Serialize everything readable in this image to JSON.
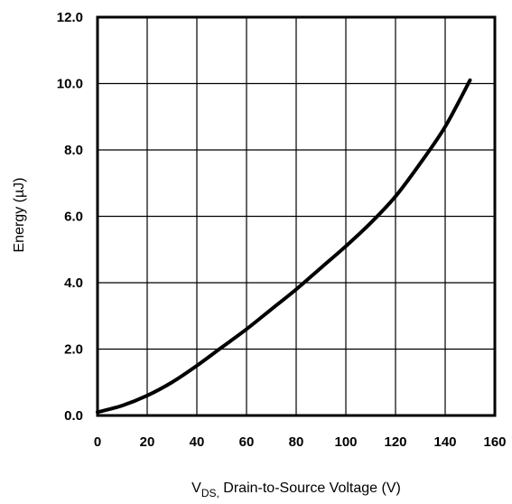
{
  "chart_data": {
    "type": "line",
    "title": "",
    "xlabel": {
      "main": "V",
      "subscript": "DS,",
      "rest": " Drain-to-Source Voltage (V)"
    },
    "ylabel": "Energy (µJ)",
    "xlim": [
      0,
      160
    ],
    "ylim": [
      0,
      12
    ],
    "x_ticks": [
      "0",
      "20",
      "40",
      "60",
      "80",
      "100",
      "120",
      "140",
      "160"
    ],
    "y_ticks": [
      "0.0",
      "2.0",
      "4.0",
      "6.0",
      "8.0",
      "10.0",
      "12.0"
    ],
    "grid": true,
    "legend": "none",
    "series": [
      {
        "x": [
          0,
          10,
          20,
          30,
          40,
          50,
          60,
          70,
          80,
          90,
          100,
          110,
          120,
          130,
          140,
          150
        ],
        "y": [
          0.1,
          0.3,
          0.6,
          1.0,
          1.5,
          2.05,
          2.6,
          3.2,
          3.8,
          4.45,
          5.1,
          5.8,
          6.6,
          7.6,
          8.7,
          10.1
        ]
      }
    ],
    "colors": {
      "line": "#000000",
      "grid": "#000000",
      "background": "#ffffff"
    }
  }
}
